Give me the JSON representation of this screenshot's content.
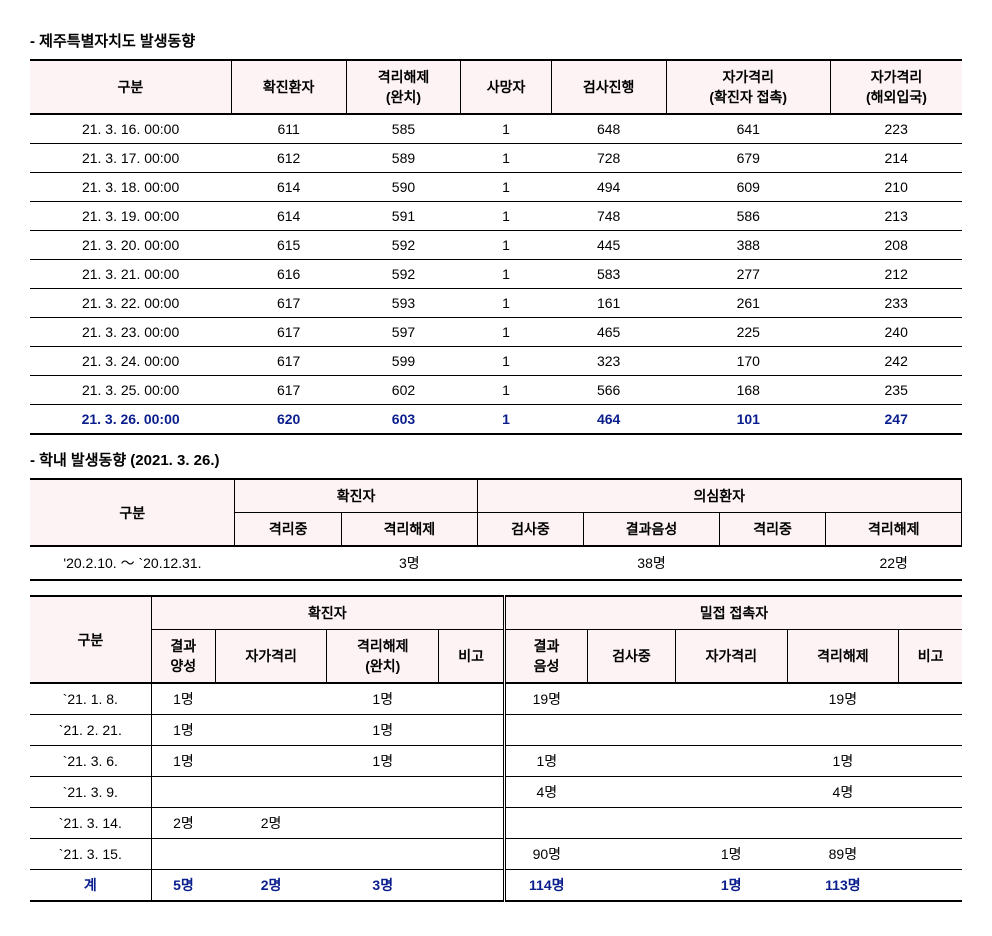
{
  "section1": {
    "title": "- 제주특별자치도 발생동향",
    "columns": [
      "구분",
      "확진환자",
      "격리해제\n(완치)",
      "사망자",
      "검사진행",
      "자가격리\n(확진자 접촉)",
      "자가격리\n(해외입국)"
    ],
    "rows": [
      [
        "21. 3. 16. 00:00",
        "611",
        "585",
        "1",
        "648",
        "641",
        "223"
      ],
      [
        "21. 3. 17. 00:00",
        "612",
        "589",
        "1",
        "728",
        "679",
        "214"
      ],
      [
        "21. 3. 18. 00:00",
        "614",
        "590",
        "1",
        "494",
        "609",
        "210"
      ],
      [
        "21. 3. 19. 00:00",
        "614",
        "591",
        "1",
        "748",
        "586",
        "213"
      ],
      [
        "21. 3. 20. 00:00",
        "615",
        "592",
        "1",
        "445",
        "388",
        "208"
      ],
      [
        "21. 3. 21. 00:00",
        "616",
        "592",
        "1",
        "583",
        "277",
        "212"
      ],
      [
        "21. 3. 22. 00:00",
        "617",
        "593",
        "1",
        "161",
        "261",
        "233"
      ],
      [
        "21. 3. 23. 00:00",
        "617",
        "597",
        "1",
        "465",
        "225",
        "240"
      ],
      [
        "21. 3. 24. 00:00",
        "617",
        "599",
        "1",
        "323",
        "170",
        "242"
      ],
      [
        "21. 3. 25. 00:00",
        "617",
        "602",
        "1",
        "566",
        "168",
        "235"
      ]
    ],
    "bold_row": [
      "21. 3. 26. 00:00",
      "620",
      "603",
      "1",
      "464",
      "101",
      "247"
    ]
  },
  "section2": {
    "title": "- 학내 발생동향 (2021. 3. 26.)",
    "header_main": [
      "구분",
      "확진자",
      "의심환자"
    ],
    "header_sub": [
      "격리중",
      "격리해제",
      "검사중",
      "결과음성",
      "격리중",
      "격리해제"
    ],
    "row": [
      "'20.2.10. ～ `20.12.31.",
      "",
      "3명",
      "",
      "38명",
      "",
      "22명"
    ]
  },
  "section3": {
    "header_main": [
      "구분",
      "확진자",
      "밀접 접촉자"
    ],
    "header_sub": [
      "결과\n양성",
      "자가격리",
      "격리해제\n(완치)",
      "비고",
      "결과\n음성",
      "검사중",
      "자가격리",
      "격리해제",
      "비고"
    ],
    "rows": [
      [
        "`21.  1.  8.",
        "1명",
        "",
        "1명",
        "",
        "19명",
        "",
        "",
        "19명",
        ""
      ],
      [
        "`21.  2. 21.",
        "1명",
        "",
        "1명",
        "",
        "",
        "",
        "",
        "",
        ""
      ],
      [
        "`21.  3.  6.",
        "1명",
        "",
        "1명",
        "",
        "1명",
        "",
        "",
        "1명",
        ""
      ],
      [
        "`21.  3.  9.",
        "",
        "",
        "",
        "",
        "4명",
        "",
        "",
        "4명",
        ""
      ],
      [
        "`21.  3. 14.",
        "2명",
        "2명",
        "",
        "",
        "",
        "",
        "",
        "",
        ""
      ],
      [
        "`21.  3. 15.",
        "",
        "",
        "",
        "",
        "90명",
        "",
        "1명",
        "89명",
        ""
      ]
    ],
    "bold_row": [
      "계",
      "5명",
      "2명",
      "3명",
      "",
      "114명",
      "",
      "1명",
      "113명",
      ""
    ]
  }
}
